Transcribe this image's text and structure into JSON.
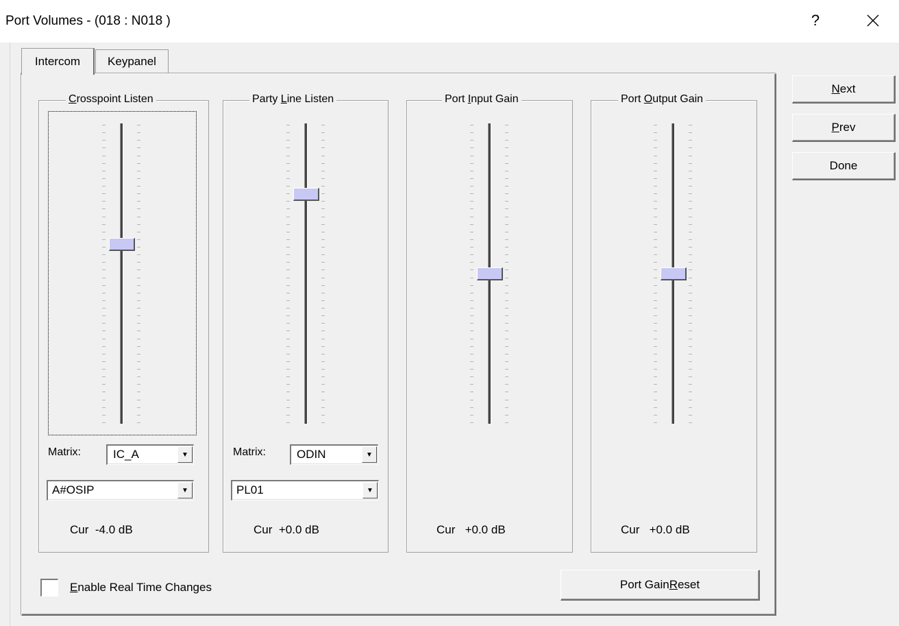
{
  "window": {
    "title": "Port Volumes - (018 : N018  )",
    "help_label": "?"
  },
  "tabs": [
    {
      "label": "Intercom",
      "active": true
    },
    {
      "label": "Keypanel",
      "active": false
    }
  ],
  "groups": [
    {
      "title_pre": "",
      "title_accel": "C",
      "title_post": "rosspoint Listen",
      "level": 0.6,
      "matrix_label": "Matrix:",
      "matrix_value": "IC_A",
      "source_value": "A#OSIP",
      "cur_label": "Cur",
      "cur_value": "-4.0 dB"
    },
    {
      "title_pre": "Party ",
      "title_accel": "L",
      "title_post": "ine Listen",
      "level": 0.77,
      "matrix_label": "Matrix:",
      "matrix_value": "ODIN",
      "source_value": "PL01",
      "cur_label": "Cur",
      "cur_value": "+0.0 dB"
    },
    {
      "title_pre": "Port ",
      "title_accel": "I",
      "title_post": "nput Gain",
      "level": 0.5,
      "cur_label": "Cur",
      "cur_value": "+0.0 dB"
    },
    {
      "title_pre": "Port ",
      "title_accel": "O",
      "title_post": "utput Gain",
      "level": 0.5,
      "cur_label": "Cur",
      "cur_value": "+0.0 dB"
    }
  ],
  "checkbox": {
    "accel": "E",
    "label_rest": "nable Real Time Changes",
    "checked": false
  },
  "reset_button": {
    "pre": "Port Gain ",
    "accel": "R",
    "post": "eset"
  },
  "side_buttons": [
    {
      "accel": "N",
      "rest": "ext"
    },
    {
      "accel": "P",
      "rest": "rev"
    },
    {
      "accel": "",
      "rest": "Done"
    }
  ]
}
